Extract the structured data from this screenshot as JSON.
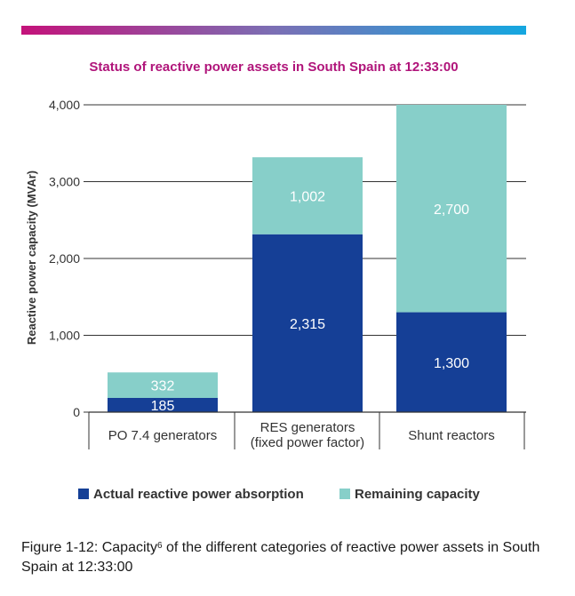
{
  "colors": {
    "gradient_start": "#c4127a",
    "gradient_mid": "#7b6fb4",
    "gradient_end": "#14a7e0",
    "title": "#b0147a",
    "actual": "#153f96",
    "remaining": "#87cfc9",
    "axis": "#333333"
  },
  "chart_data": {
    "type": "bar",
    "stacked": true,
    "title": "Status of reactive power assets in South Spain at 12:33:00",
    "ylabel": "Reactive power capacity (MVAr)",
    "xlabel": "",
    "ylim": [
      0,
      4000
    ],
    "yticks": [
      0,
      1000,
      2000,
      3000,
      4000
    ],
    "ytick_labels": [
      "0",
      "1,000",
      "2,000",
      "3,000",
      "4,000"
    ],
    "categories": [
      [
        "PO 7.4 generators"
      ],
      [
        "RES generators",
        "(fixed power factor)"
      ],
      [
        "Shunt reactors"
      ]
    ],
    "series": [
      {
        "name": "Actual reactive power absorption",
        "values": [
          185,
          2315,
          1300
        ],
        "labels": [
          "185",
          "2,315",
          "1,300"
        ]
      },
      {
        "name": "Remaining capacity",
        "values": [
          332,
          1002,
          2700
        ],
        "labels": [
          "332",
          "1,002",
          "2,700"
        ]
      }
    ],
    "legend": "bottom",
    "grid": true
  },
  "caption": {
    "prefix": "Figure 1-12: Capacity",
    "superscript": "6",
    "text": " of the different categories of reactive power assets in South Spain at 12:33:00"
  }
}
